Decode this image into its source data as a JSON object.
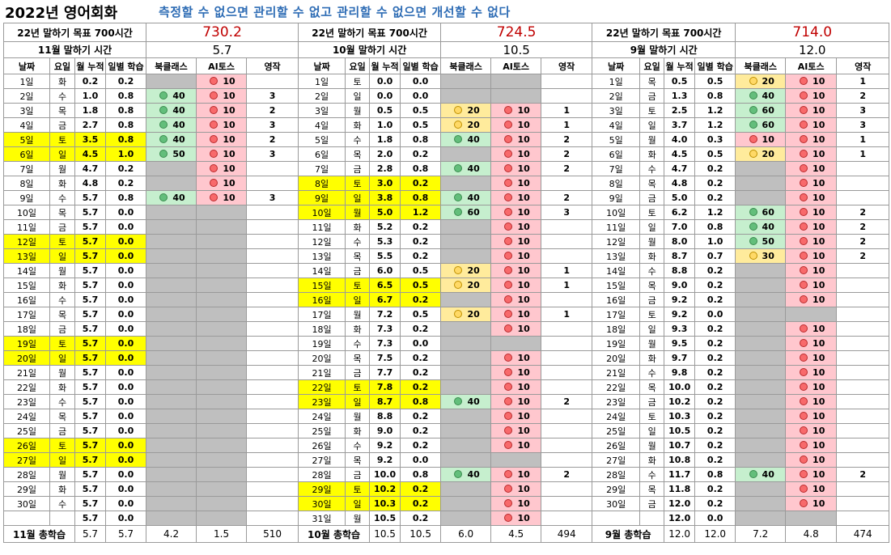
{
  "header": {
    "title": "2022년 영어회화",
    "slogan": "측정할 수 없으면 관리할 수 없고 관리할 수 없으면 개선할 수 없다"
  },
  "colors": {
    "weekend": "#ffff00",
    "empty": "#bfbfbf",
    "good": "#c6efce",
    "mid": "#ffeb9c",
    "low": "#ffc7ce",
    "target": "#c00000",
    "slogan": "#2f6db5"
  },
  "columns": [
    "날짜",
    "요일",
    "월 누적",
    "일별 학습",
    "북클래스",
    "AI토스",
    "영작"
  ],
  "months": [
    {
      "goal_label": "22년 말하기 목표 700시간",
      "goal_value": "730.2",
      "month_label": "11월 말하기 시간",
      "month_value": "5.7",
      "rows": [
        [
          "1일",
          "화",
          "0.2",
          "0.2",
          null,
          "10",
          "",
          false
        ],
        [
          "2일",
          "수",
          "1.0",
          "0.8",
          "40",
          "10",
          "3",
          false
        ],
        [
          "3일",
          "목",
          "1.8",
          "0.8",
          "40",
          "10",
          "2",
          false
        ],
        [
          "4일",
          "금",
          "2.7",
          "0.8",
          "40",
          "10",
          "3",
          false
        ],
        [
          "5일",
          "토",
          "3.5",
          "0.8",
          "40",
          "10",
          "2",
          true
        ],
        [
          "6일",
          "일",
          "4.5",
          "1.0",
          "50",
          "10",
          "3",
          true
        ],
        [
          "7일",
          "월",
          "4.7",
          "0.2",
          null,
          "10",
          "",
          false
        ],
        [
          "8일",
          "화",
          "4.8",
          "0.2",
          null,
          "10",
          "",
          false
        ],
        [
          "9일",
          "수",
          "5.7",
          "0.8",
          "40",
          "10",
          "3",
          false
        ],
        [
          "10일",
          "목",
          "5.7",
          "0.0",
          null,
          null,
          "",
          false
        ],
        [
          "11일",
          "금",
          "5.7",
          "0.0",
          null,
          null,
          "",
          false
        ],
        [
          "12일",
          "토",
          "5.7",
          "0.0",
          null,
          null,
          "",
          true
        ],
        [
          "13일",
          "일",
          "5.7",
          "0.0",
          null,
          null,
          "",
          true
        ],
        [
          "14일",
          "월",
          "5.7",
          "0.0",
          null,
          null,
          "",
          false
        ],
        [
          "15일",
          "화",
          "5.7",
          "0.0",
          null,
          null,
          "",
          false
        ],
        [
          "16일",
          "수",
          "5.7",
          "0.0",
          null,
          null,
          "",
          false
        ],
        [
          "17일",
          "목",
          "5.7",
          "0.0",
          null,
          null,
          "",
          false
        ],
        [
          "18일",
          "금",
          "5.7",
          "0.0",
          null,
          null,
          "",
          false
        ],
        [
          "19일",
          "토",
          "5.7",
          "0.0",
          null,
          null,
          "",
          true
        ],
        [
          "20일",
          "일",
          "5.7",
          "0.0",
          null,
          null,
          "",
          true
        ],
        [
          "21일",
          "월",
          "5.7",
          "0.0",
          null,
          null,
          "",
          false
        ],
        [
          "22일",
          "화",
          "5.7",
          "0.0",
          null,
          null,
          "",
          false
        ],
        [
          "23일",
          "수",
          "5.7",
          "0.0",
          null,
          null,
          "",
          false
        ],
        [
          "24일",
          "목",
          "5.7",
          "0.0",
          null,
          null,
          "",
          false
        ],
        [
          "25일",
          "금",
          "5.7",
          "0.0",
          null,
          null,
          "",
          false
        ],
        [
          "26일",
          "토",
          "5.7",
          "0.0",
          null,
          null,
          "",
          true
        ],
        [
          "27일",
          "일",
          "5.7",
          "0.0",
          null,
          null,
          "",
          true
        ],
        [
          "28일",
          "월",
          "5.7",
          "0.0",
          null,
          null,
          "",
          false
        ],
        [
          "29일",
          "화",
          "5.7",
          "0.0",
          null,
          null,
          "",
          false
        ],
        [
          "30일",
          "수",
          "5.7",
          "0.0",
          null,
          null,
          "",
          false
        ],
        [
          "",
          "",
          "5.7",
          "0.0",
          null,
          null,
          "",
          false
        ]
      ],
      "footer": {
        "label": "11월 총학습",
        "cum": "5.7",
        "daily": "5.7",
        "book": "4.2",
        "ai": "1.5",
        "eng": "510"
      }
    },
    {
      "goal_label": "22년 말하기 목표 700시간",
      "goal_value": "724.5",
      "month_label": "10월 말하기 시간",
      "month_value": "10.5",
      "rows": [
        [
          "1일",
          "토",
          "0.0",
          "0.0",
          null,
          null,
          "",
          false
        ],
        [
          "2일",
          "일",
          "0.0",
          "0.0",
          null,
          null,
          "",
          false
        ],
        [
          "3일",
          "월",
          "0.5",
          "0.5",
          "20",
          "10",
          "1",
          false
        ],
        [
          "4일",
          "화",
          "1.0",
          "0.5",
          "20",
          "10",
          "1",
          false
        ],
        [
          "5일",
          "수",
          "1.8",
          "0.8",
          "40",
          "10",
          "2",
          false
        ],
        [
          "6일",
          "목",
          "2.0",
          "0.2",
          null,
          "10",
          "2",
          false
        ],
        [
          "7일",
          "금",
          "2.8",
          "0.8",
          "40",
          "10",
          "2",
          false
        ],
        [
          "8일",
          "토",
          "3.0",
          "0.2",
          null,
          "10",
          "",
          true
        ],
        [
          "9일",
          "일",
          "3.8",
          "0.8",
          "40",
          "10",
          "2",
          true
        ],
        [
          "10일",
          "월",
          "5.0",
          "1.2",
          "60",
          "10",
          "3",
          true
        ],
        [
          "11일",
          "화",
          "5.2",
          "0.2",
          null,
          "10",
          "",
          false
        ],
        [
          "12일",
          "수",
          "5.3",
          "0.2",
          null,
          "10",
          "",
          false
        ],
        [
          "13일",
          "목",
          "5.5",
          "0.2",
          null,
          "10",
          "",
          false
        ],
        [
          "14일",
          "금",
          "6.0",
          "0.5",
          "20",
          "10",
          "1",
          false
        ],
        [
          "15일",
          "토",
          "6.5",
          "0.5",
          "20",
          "10",
          "1",
          true
        ],
        [
          "16일",
          "일",
          "6.7",
          "0.2",
          null,
          "10",
          "",
          true
        ],
        [
          "17일",
          "월",
          "7.2",
          "0.5",
          "20",
          "10",
          "1",
          false
        ],
        [
          "18일",
          "화",
          "7.3",
          "0.2",
          null,
          "10",
          "",
          false
        ],
        [
          "19일",
          "수",
          "7.3",
          "0.0",
          null,
          null,
          "",
          false
        ],
        [
          "20일",
          "목",
          "7.5",
          "0.2",
          null,
          "10",
          "",
          false
        ],
        [
          "21일",
          "금",
          "7.7",
          "0.2",
          null,
          "10",
          "",
          false
        ],
        [
          "22일",
          "토",
          "7.8",
          "0.2",
          null,
          "10",
          "",
          true
        ],
        [
          "23일",
          "일",
          "8.7",
          "0.8",
          "40",
          "10",
          "2",
          true
        ],
        [
          "24일",
          "월",
          "8.8",
          "0.2",
          null,
          "10",
          "",
          false
        ],
        [
          "25일",
          "화",
          "9.0",
          "0.2",
          null,
          "10",
          "",
          false
        ],
        [
          "26일",
          "수",
          "9.2",
          "0.2",
          null,
          "10",
          "",
          false
        ],
        [
          "27일",
          "목",
          "9.2",
          "0.0",
          null,
          null,
          "",
          false
        ],
        [
          "28일",
          "금",
          "10.0",
          "0.8",
          "40",
          "10",
          "2",
          false
        ],
        [
          "29일",
          "토",
          "10.2",
          "0.2",
          null,
          "10",
          "",
          true
        ],
        [
          "30일",
          "일",
          "10.3",
          "0.2",
          null,
          "10",
          "",
          true
        ],
        [
          "31일",
          "월",
          "10.5",
          "0.2",
          null,
          "10",
          "",
          false
        ]
      ],
      "footer": {
        "label": "10월 총학습",
        "cum": "10.5",
        "daily": "10.5",
        "book": "6.0",
        "ai": "4.5",
        "eng": "494"
      }
    },
    {
      "goal_label": "22년 말하기 목표 700시간",
      "goal_value": "714.0",
      "month_label": "9월 말하기 시간",
      "month_value": "12.0",
      "rows": [
        [
          "1일",
          "목",
          "0.5",
          "0.5",
          "20",
          "10",
          "1",
          false
        ],
        [
          "2일",
          "금",
          "1.3",
          "0.8",
          "40",
          "10",
          "2",
          false
        ],
        [
          "3일",
          "토",
          "2.5",
          "1.2",
          "60",
          "10",
          "3",
          false
        ],
        [
          "4일",
          "일",
          "3.7",
          "1.2",
          "60",
          "10",
          "3",
          false
        ],
        [
          "5일",
          "월",
          "4.0",
          "0.3",
          "10",
          "10",
          "1",
          false
        ],
        [
          "6일",
          "화",
          "4.5",
          "0.5",
          "20",
          "10",
          "1",
          false
        ],
        [
          "7일",
          "수",
          "4.7",
          "0.2",
          null,
          "10",
          "",
          false
        ],
        [
          "8일",
          "목",
          "4.8",
          "0.2",
          null,
          "10",
          "",
          false
        ],
        [
          "9일",
          "금",
          "5.0",
          "0.2",
          null,
          "10",
          "",
          false
        ],
        [
          "10일",
          "토",
          "6.2",
          "1.2",
          "60",
          "10",
          "2",
          false
        ],
        [
          "11일",
          "일",
          "7.0",
          "0.8",
          "40",
          "10",
          "2",
          false
        ],
        [
          "12일",
          "월",
          "8.0",
          "1.0",
          "50",
          "10",
          "2",
          false
        ],
        [
          "13일",
          "화",
          "8.7",
          "0.7",
          "30",
          "10",
          "2",
          false
        ],
        [
          "14일",
          "수",
          "8.8",
          "0.2",
          null,
          "10",
          "",
          false
        ],
        [
          "15일",
          "목",
          "9.0",
          "0.2",
          null,
          "10",
          "",
          false
        ],
        [
          "16일",
          "금",
          "9.2",
          "0.2",
          null,
          "10",
          "",
          false
        ],
        [
          "17일",
          "토",
          "9.2",
          "0.0",
          null,
          null,
          "",
          false
        ],
        [
          "18일",
          "일",
          "9.3",
          "0.2",
          null,
          "10",
          "",
          false
        ],
        [
          "19일",
          "월",
          "9.5",
          "0.2",
          null,
          "10",
          "",
          false
        ],
        [
          "20일",
          "화",
          "9.7",
          "0.2",
          null,
          "10",
          "",
          false
        ],
        [
          "21일",
          "수",
          "9.8",
          "0.2",
          null,
          "10",
          "",
          false
        ],
        [
          "22일",
          "목",
          "10.0",
          "0.2",
          null,
          "10",
          "",
          false
        ],
        [
          "23일",
          "금",
          "10.2",
          "0.2",
          null,
          "10",
          "",
          false
        ],
        [
          "24일",
          "토",
          "10.3",
          "0.2",
          null,
          "10",
          "",
          false
        ],
        [
          "25일",
          "일",
          "10.5",
          "0.2",
          null,
          "10",
          "",
          false
        ],
        [
          "26일",
          "월",
          "10.7",
          "0.2",
          null,
          "10",
          "",
          false
        ],
        [
          "27일",
          "화",
          "10.8",
          "0.2",
          null,
          "10",
          "",
          false
        ],
        [
          "28일",
          "수",
          "11.7",
          "0.8",
          "40",
          "10",
          "2",
          false
        ],
        [
          "29일",
          "목",
          "11.8",
          "0.2",
          null,
          "10",
          "",
          false
        ],
        [
          "30일",
          "금",
          "12.0",
          "0.2",
          null,
          "10",
          "",
          false
        ],
        [
          "",
          "",
          "12.0",
          "0.0",
          null,
          null,
          "",
          false
        ]
      ],
      "footer": {
        "label": "9월 총학습",
        "cum": "12.0",
        "daily": "12.0",
        "book": "7.2",
        "ai": "4.8",
        "eng": "474"
      }
    }
  ]
}
